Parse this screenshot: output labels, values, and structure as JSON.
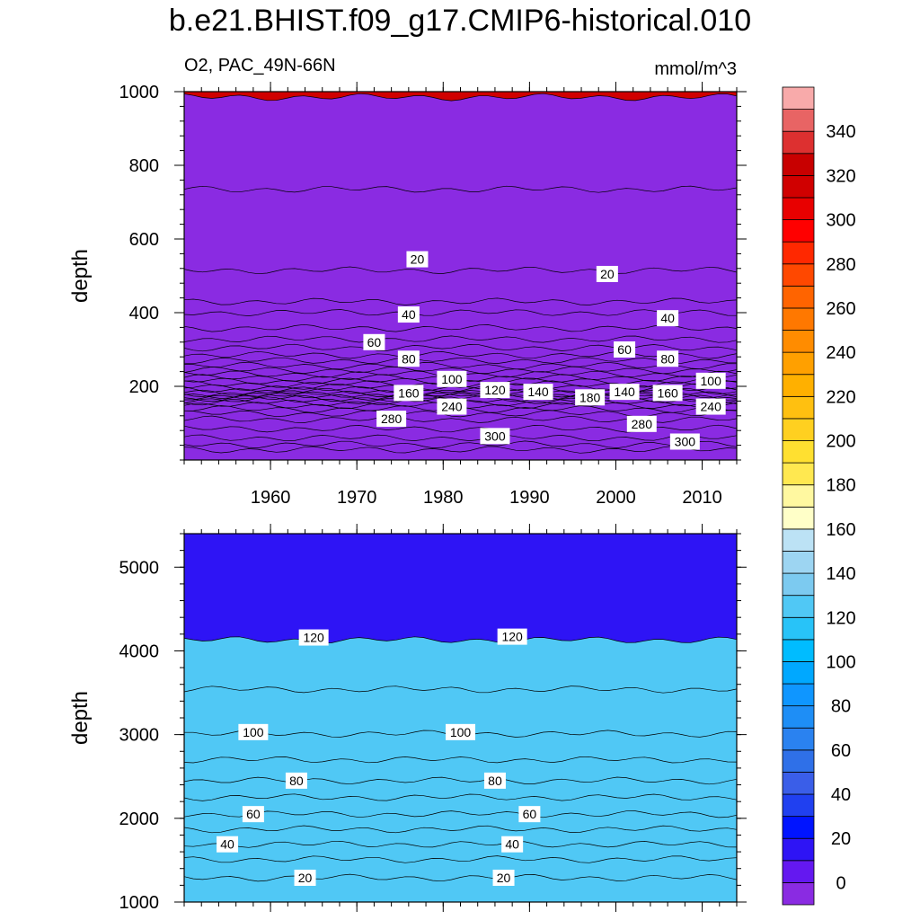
{
  "title": "b.e21.BHIST.f09_g17.CMIP6-historical.010",
  "left_string": "O2, PAC_49N-66N",
  "right_string": "mmol/m^3",
  "chart_data": [
    {
      "type": "heatmap",
      "panel": "upper",
      "variable": "O2",
      "region": "PAC_49N-66N",
      "units": "mmol/m^3",
      "ylabel": "depth",
      "xlim": [
        1950,
        2014
      ],
      "ylim": [
        1000,
        0
      ],
      "x_ticks": [
        1960,
        1970,
        1980,
        1990,
        2000,
        2010
      ],
      "y_ticks": [
        200,
        400,
        600,
        800,
        1000
      ],
      "contour_depths": [
        {
          "level": 320,
          "depth": 28
        },
        {
          "level": 310,
          "depth": 42
        },
        {
          "level": 300,
          "depth": 60
        },
        {
          "level": 290,
          "depth": 85
        },
        {
          "level": 280,
          "depth": 110
        },
        {
          "level": 270,
          "depth": 126
        },
        {
          "level": 260,
          "depth": 138
        },
        {
          "level": 250,
          "depth": 148
        },
        {
          "level": 240,
          "depth": 156
        },
        {
          "level": 230,
          "depth": 162
        },
        {
          "level": 220,
          "depth": 167
        },
        {
          "level": 210,
          "depth": 172
        },
        {
          "level": 200,
          "depth": 176
        },
        {
          "level": 190,
          "depth": 180
        },
        {
          "level": 180,
          "depth": 185
        },
        {
          "level": 170,
          "depth": 191
        },
        {
          "level": 160,
          "depth": 198
        },
        {
          "level": 150,
          "depth": 206
        },
        {
          "level": 140,
          "depth": 214
        },
        {
          "level": 130,
          "depth": 223
        },
        {
          "level": 120,
          "depth": 233
        },
        {
          "level": 110,
          "depth": 244
        },
        {
          "level": 100,
          "depth": 256
        },
        {
          "level": 90,
          "depth": 270
        },
        {
          "level": 80,
          "depth": 285
        },
        {
          "level": 70,
          "depth": 305
        },
        {
          "level": 60,
          "depth": 328
        },
        {
          "level": 50,
          "depth": 358
        },
        {
          "level": 40,
          "depth": 400
        },
        {
          "level": 30,
          "depth": 430
        },
        {
          "level": 20,
          "depth": 515
        },
        {
          "level": 10,
          "depth": 735
        },
        {
          "level": 0,
          "depth": 985
        }
      ],
      "contour_labels": [
        {
          "text": "300",
          "x": 1986,
          "y": 65
        },
        {
          "text": "300",
          "x": 2008,
          "y": 50
        },
        {
          "text": "280",
          "x": 1974,
          "y": 112
        },
        {
          "text": "280",
          "x": 2003,
          "y": 98
        },
        {
          "text": "240",
          "x": 1981,
          "y": 145
        },
        {
          "text": "240",
          "x": 2011,
          "y": 145
        },
        {
          "text": "180",
          "x": 1997,
          "y": 170
        },
        {
          "text": "160",
          "x": 1976,
          "y": 182
        },
        {
          "text": "160",
          "x": 2006,
          "y": 182
        },
        {
          "text": "140",
          "x": 1991,
          "y": 185
        },
        {
          "text": "140",
          "x": 2001,
          "y": 185
        },
        {
          "text": "120",
          "x": 1986,
          "y": 190
        },
        {
          "text": "100",
          "x": 1981,
          "y": 220
        },
        {
          "text": "100",
          "x": 2011,
          "y": 215
        },
        {
          "text": "80",
          "x": 1976,
          "y": 275
        },
        {
          "text": "80",
          "x": 2006,
          "y": 275
        },
        {
          "text": "60",
          "x": 1972,
          "y": 320
        },
        {
          "text": "60",
          "x": 2001,
          "y": 300
        },
        {
          "text": "40",
          "x": 1976,
          "y": 395
        },
        {
          "text": "40",
          "x": 2006,
          "y": 385
        },
        {
          "text": "20",
          "x": 1977,
          "y": 545
        },
        {
          "text": "20",
          "x": 1999,
          "y": 505
        }
      ]
    },
    {
      "type": "heatmap",
      "panel": "lower",
      "variable": "O2",
      "ylabel": "depth",
      "xlim": [
        1950,
        2014
      ],
      "ylim": [
        5400,
        1000
      ],
      "x_ticks": [
        1960,
        1970,
        1980,
        1990,
        2000,
        2010
      ],
      "y_ticks": [
        1000,
        2000,
        3000,
        4000,
        5000
      ],
      "contour_depths": [
        {
          "level": 20,
          "depth": 1290
        },
        {
          "level": 30,
          "depth": 1510
        },
        {
          "level": 40,
          "depth": 1690
        },
        {
          "level": 50,
          "depth": 1870
        },
        {
          "level": 60,
          "depth": 2050
        },
        {
          "level": 70,
          "depth": 2250
        },
        {
          "level": 80,
          "depth": 2450
        },
        {
          "level": 90,
          "depth": 2700
        },
        {
          "level": 100,
          "depth": 3010
        },
        {
          "level": 110,
          "depth": 3540
        },
        {
          "level": 120,
          "depth": 4130
        }
      ],
      "contour_labels": [
        {
          "text": "20",
          "x": 1964,
          "y": 1290
        },
        {
          "text": "20",
          "x": 1987,
          "y": 1290
        },
        {
          "text": "40",
          "x": 1955,
          "y": 1690
        },
        {
          "text": "40",
          "x": 1988,
          "y": 1690
        },
        {
          "text": "60",
          "x": 1958,
          "y": 2050
        },
        {
          "text": "60",
          "x": 1990,
          "y": 2050
        },
        {
          "text": "80",
          "x": 1963,
          "y": 2450
        },
        {
          "text": "80",
          "x": 1986,
          "y": 2450
        },
        {
          "text": "100",
          "x": 1958,
          "y": 3030
        },
        {
          "text": "100",
          "x": 1982,
          "y": 3030
        },
        {
          "text": "120",
          "x": 1965,
          "y": 4160
        },
        {
          "text": "120",
          "x": 1988,
          "y": 4170
        }
      ]
    }
  ],
  "colorbar": {
    "levels": [
      -10,
      0,
      10,
      20,
      30,
      40,
      50,
      60,
      70,
      80,
      90,
      100,
      110,
      120,
      130,
      140,
      150,
      160,
      170,
      180,
      190,
      200,
      210,
      220,
      230,
      240,
      250,
      260,
      270,
      280,
      290,
      300,
      310,
      320,
      330,
      340,
      350,
      360
    ],
    "tick_labels": [
      "0",
      "20",
      "40",
      "60",
      "80",
      "100",
      "120",
      "140",
      "160",
      "180",
      "200",
      "220",
      "240",
      "260",
      "280",
      "300",
      "320",
      "340"
    ],
    "colors": [
      "#8a2be2",
      "#6418f0",
      "#2e14f5",
      "#0014ff",
      "#2040f0",
      "#3a5ee8",
      "#2f70e8",
      "#2a82f0",
      "#1e8ef6",
      "#0f96ff",
      "#00a8ff",
      "#00bcff",
      "#28c3f8",
      "#50c8f5",
      "#7ccaf0",
      "#9dd5f2",
      "#bce2f5",
      "#ffffc8",
      "#fff8a0",
      "#ffe850",
      "#ffe030",
      "#ffd020",
      "#ffc010",
      "#ffb000",
      "#ffa000",
      "#ff8c00",
      "#ff7800",
      "#ff6400",
      "#ff4800",
      "#ff2800",
      "#ff0000",
      "#e80000",
      "#d00000",
      "#c80000",
      "#dd3030",
      "#e86464",
      "#f8aaaa"
    ]
  }
}
